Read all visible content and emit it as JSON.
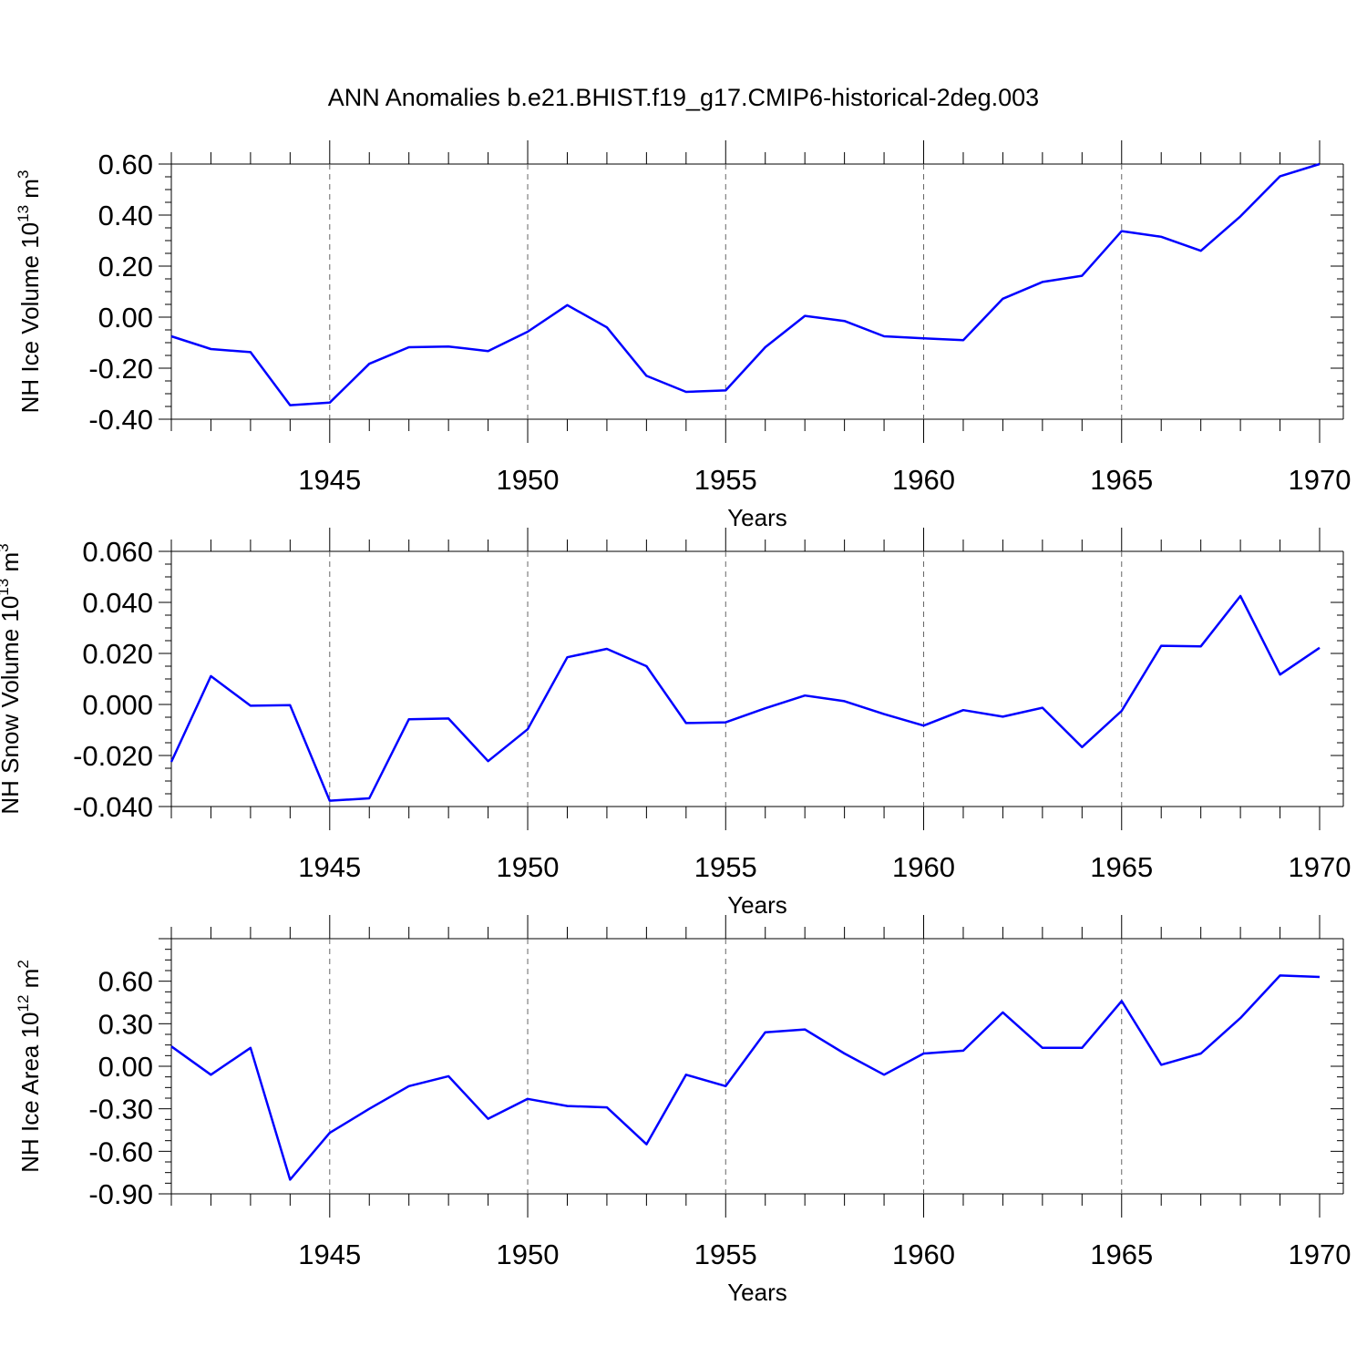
{
  "title": "ANN Anomalies b.e21.BHIST.f19_g17.CMIP6-historical-2deg.003",
  "chart_data": [
    {
      "type": "line",
      "ylabel": "NH Ice Volume 10",
      "ylabel_sup": "13",
      "ylabel_unit": " m",
      "ylabel_unit_sup": "3",
      "xlabel": "Years",
      "xlim": [
        1941,
        1970
      ],
      "ylim": [
        -0.4,
        0.6
      ],
      "yticks": [
        -0.4,
        -0.2,
        0.0,
        0.2,
        0.4,
        0.6
      ],
      "ytick_labels": [
        "-0.40",
        "-0.20",
        "0.00",
        "0.20",
        "0.40",
        "0.60"
      ],
      "xticks": [
        1945,
        1950,
        1955,
        1960,
        1965,
        1970
      ],
      "xtick_labels": [
        "1945",
        "1950",
        "1955",
        "1960",
        "1965",
        "1970"
      ],
      "grid": "x-dashed",
      "x": [
        1941,
        1942,
        1943,
        1944,
        1945,
        1946,
        1947,
        1948,
        1949,
        1950,
        1951,
        1952,
        1953,
        1954,
        1955,
        1956,
        1957,
        1958,
        1959,
        1960,
        1961,
        1962,
        1963,
        1964,
        1965,
        1966,
        1967,
        1968,
        1969,
        1970
      ],
      "values": [
        -0.075,
        -0.125,
        -0.137,
        -0.345,
        -0.335,
        -0.183,
        -0.118,
        -0.115,
        -0.133,
        -0.057,
        0.047,
        -0.04,
        -0.23,
        -0.293,
        -0.287,
        -0.118,
        0.005,
        -0.015,
        -0.075,
        -0.083,
        -0.09,
        0.072,
        0.138,
        0.162,
        0.337,
        0.315,
        0.26,
        0.395,
        0.552,
        0.6
      ]
    },
    {
      "type": "line",
      "ylabel": "NH Snow Volume 10",
      "ylabel_sup": "13",
      "ylabel_unit": " m",
      "ylabel_unit_sup": "3",
      "xlabel": "Years",
      "xlim": [
        1941,
        1970
      ],
      "ylim": [
        -0.04,
        0.06
      ],
      "yticks": [
        -0.04,
        -0.02,
        0.0,
        0.02,
        0.04,
        0.06
      ],
      "ytick_labels": [
        "-0.040",
        "-0.020",
        "0.000",
        "0.020",
        "0.040",
        "0.060"
      ],
      "xticks": [
        1945,
        1950,
        1955,
        1960,
        1965,
        1970
      ],
      "xtick_labels": [
        "1945",
        "1950",
        "1955",
        "1960",
        "1965",
        "1970"
      ],
      "grid": "x-dashed",
      "x": [
        1941,
        1942,
        1943,
        1944,
        1945,
        1946,
        1947,
        1948,
        1949,
        1950,
        1951,
        1952,
        1953,
        1954,
        1955,
        1956,
        1957,
        1958,
        1959,
        1960,
        1961,
        1962,
        1963,
        1964,
        1965,
        1966,
        1967,
        1968,
        1969,
        1970
      ],
      "values": [
        -0.0225,
        0.0111,
        -0.0005,
        -0.0003,
        -0.0377,
        -0.0368,
        -0.0058,
        -0.0055,
        -0.0222,
        -0.0097,
        0.0185,
        0.0218,
        0.015,
        -0.0073,
        -0.007,
        -0.0015,
        0.0035,
        0.0013,
        -0.0038,
        -0.0083,
        -0.0022,
        -0.0048,
        -0.0013,
        -0.0167,
        -0.0025,
        0.023,
        0.0228,
        0.0425,
        0.0117,
        0.0222
      ]
    },
    {
      "type": "line",
      "ylabel": "NH Ice Area 10",
      "ylabel_sup": "12",
      "ylabel_unit": " m",
      "ylabel_unit_sup": "2",
      "xlabel": "Years",
      "xlim": [
        1941,
        1970
      ],
      "ylim": [
        -0.9,
        0.9
      ],
      "yticks": [
        -0.9,
        -0.6,
        -0.3,
        0.0,
        0.3,
        0.6
      ],
      "ytick_labels": [
        "-0.90",
        "-0.60",
        "-0.30",
        "0.00",
        "0.30",
        "0.60"
      ],
      "xticks": [
        1945,
        1950,
        1955,
        1960,
        1965,
        1970
      ],
      "xtick_labels": [
        "1945",
        "1950",
        "1955",
        "1960",
        "1965",
        "1970"
      ],
      "grid": "x-dashed",
      "x": [
        1941,
        1942,
        1943,
        1944,
        1945,
        1946,
        1947,
        1948,
        1949,
        1950,
        1951,
        1952,
        1953,
        1954,
        1955,
        1956,
        1957,
        1958,
        1959,
        1960,
        1961,
        1962,
        1963,
        1964,
        1965,
        1966,
        1967,
        1968,
        1969,
        1970
      ],
      "values": [
        0.14,
        -0.06,
        0.13,
        -0.8,
        -0.47,
        -0.3,
        -0.14,
        -0.07,
        -0.37,
        -0.23,
        -0.28,
        -0.29,
        -0.55,
        -0.06,
        -0.14,
        0.24,
        0.26,
        0.09,
        -0.06,
        0.09,
        0.11,
        0.38,
        0.13,
        0.13,
        0.46,
        0.01,
        0.09,
        0.34,
        0.64,
        0.63
      ]
    }
  ]
}
